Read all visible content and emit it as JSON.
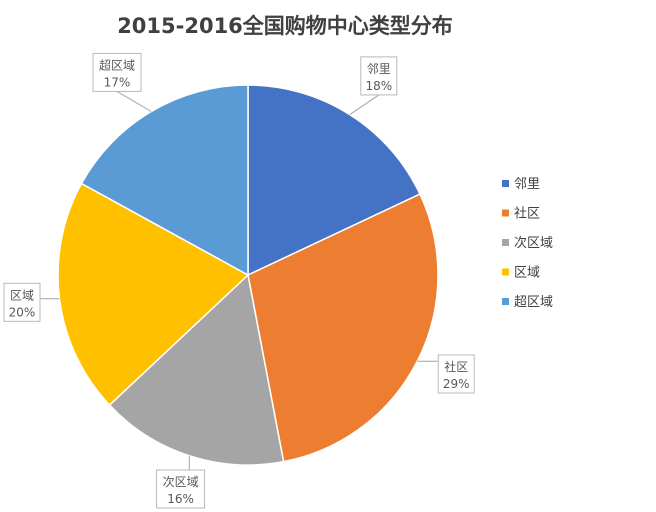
{
  "chart_data": {
    "type": "pie",
    "title": "2015-2016全国购物中心类型分布",
    "categories": [
      "邻里",
      "社区",
      "次区域",
      "区域",
      "超区域"
    ],
    "values": [
      18,
      29,
      16,
      20,
      17
    ],
    "value_labels": [
      "18%",
      "29%",
      "16%",
      "20%",
      "17%"
    ],
    "colors": [
      "#4472C4",
      "#ED7D31",
      "#A5A5A5",
      "#FFC000",
      "#5B9BD5"
    ],
    "start_angle_deg": 0,
    "direction": "clockwise",
    "legend_position": "right",
    "data_labels": "callout"
  }
}
